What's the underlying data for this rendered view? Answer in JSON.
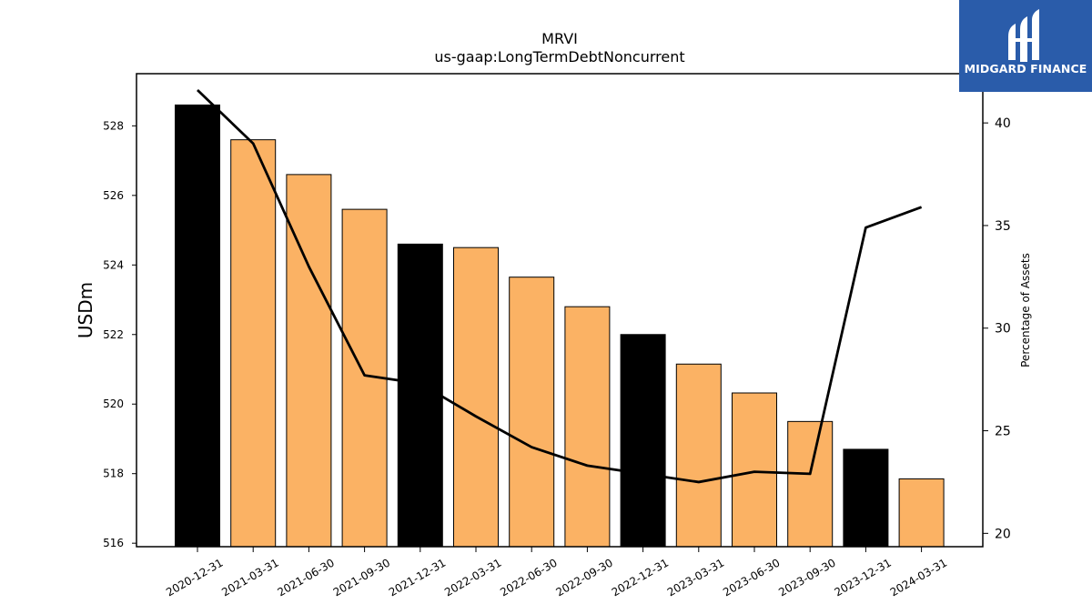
{
  "brand": {
    "name": "MIDGARD FINANCE",
    "bg_color": "#2a5caa",
    "text_color": "#ffffff"
  },
  "chart_data": {
    "type": "bar",
    "title": "MRVI",
    "subtitle": "us-gaap:LongTermDebtNoncurrent",
    "ylabel": "USDm",
    "y2label": "Percentage of Assets",
    "categories": [
      "2020-12-31",
      "2021-03-31",
      "2021-06-30",
      "2021-09-30",
      "2021-12-31",
      "2022-03-31",
      "2022-06-30",
      "2022-09-30",
      "2022-12-31",
      "2023-03-31",
      "2023-06-30",
      "2023-09-30",
      "2023-12-31",
      "2024-03-31"
    ],
    "series": [
      {
        "kind": "bar",
        "axis": "left",
        "values": [
          528.6,
          527.6,
          526.6,
          525.6,
          524.6,
          524.5,
          523.65,
          522.8,
          522.0,
          521.15,
          520.32,
          519.5,
          518.7,
          517.85
        ],
        "colors": [
          "#000000",
          "#fbb264",
          "#fbb264",
          "#fbb264",
          "#000000",
          "#fbb264",
          "#fbb264",
          "#fbb264",
          "#000000",
          "#fbb264",
          "#fbb264",
          "#fbb264",
          "#000000",
          "#fbb264"
        ]
      },
      {
        "kind": "line",
        "axis": "right",
        "color": "#000000",
        "values": [
          41.6,
          39.0,
          33.0,
          27.7,
          27.3,
          25.7,
          24.2,
          23.3,
          22.9,
          22.5,
          23.0,
          22.9,
          34.9,
          35.9
        ]
      }
    ],
    "ylim": [
      515.9,
      529.5
    ],
    "y2lim": [
      19.35,
      42.4
    ],
    "yticks": [
      516,
      518,
      520,
      522,
      524,
      526,
      528
    ],
    "y2ticks": [
      20,
      25,
      30,
      35,
      40
    ],
    "grid": false
  }
}
